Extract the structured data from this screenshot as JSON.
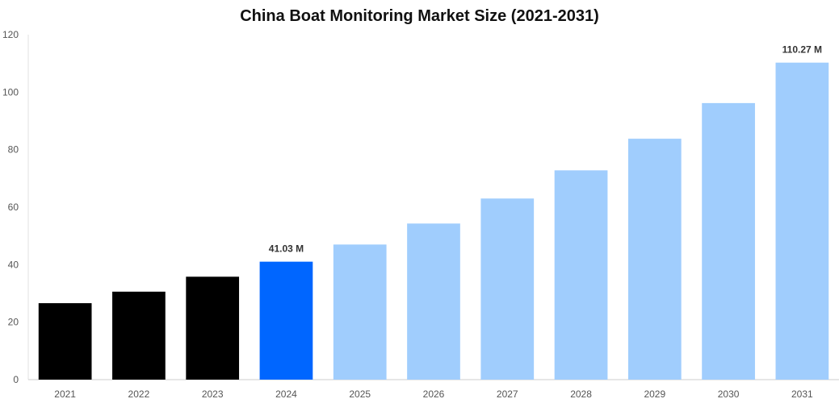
{
  "chart_data": {
    "type": "bar",
    "title": "China Boat Monitoring Market Size (2021-2031)",
    "xlabel": "",
    "ylabel": "",
    "categories": [
      "2021",
      "2022",
      "2023",
      "2024",
      "2025",
      "2026",
      "2027",
      "2028",
      "2029",
      "2030",
      "2031"
    ],
    "values": [
      26.6,
      30.6,
      35.8,
      41.03,
      47.0,
      54.3,
      63.0,
      72.8,
      83.8,
      96.2,
      110.27
    ],
    "bar_colors": [
      "#000000",
      "#000000",
      "#000000",
      "#0066ff",
      "#a0cdfd",
      "#a0cdfd",
      "#a0cdfd",
      "#a0cdfd",
      "#a0cdfd",
      "#a0cdfd",
      "#a0cdfd"
    ],
    "data_labels": [
      {
        "category": "2024",
        "text": "41.03 M"
      },
      {
        "category": "2031",
        "text": "110.27 M"
      }
    ],
    "ylim": [
      0,
      120
    ],
    "yticks": [
      0,
      20,
      40,
      60,
      80,
      100,
      120
    ],
    "grid": false,
    "legend": "none"
  }
}
